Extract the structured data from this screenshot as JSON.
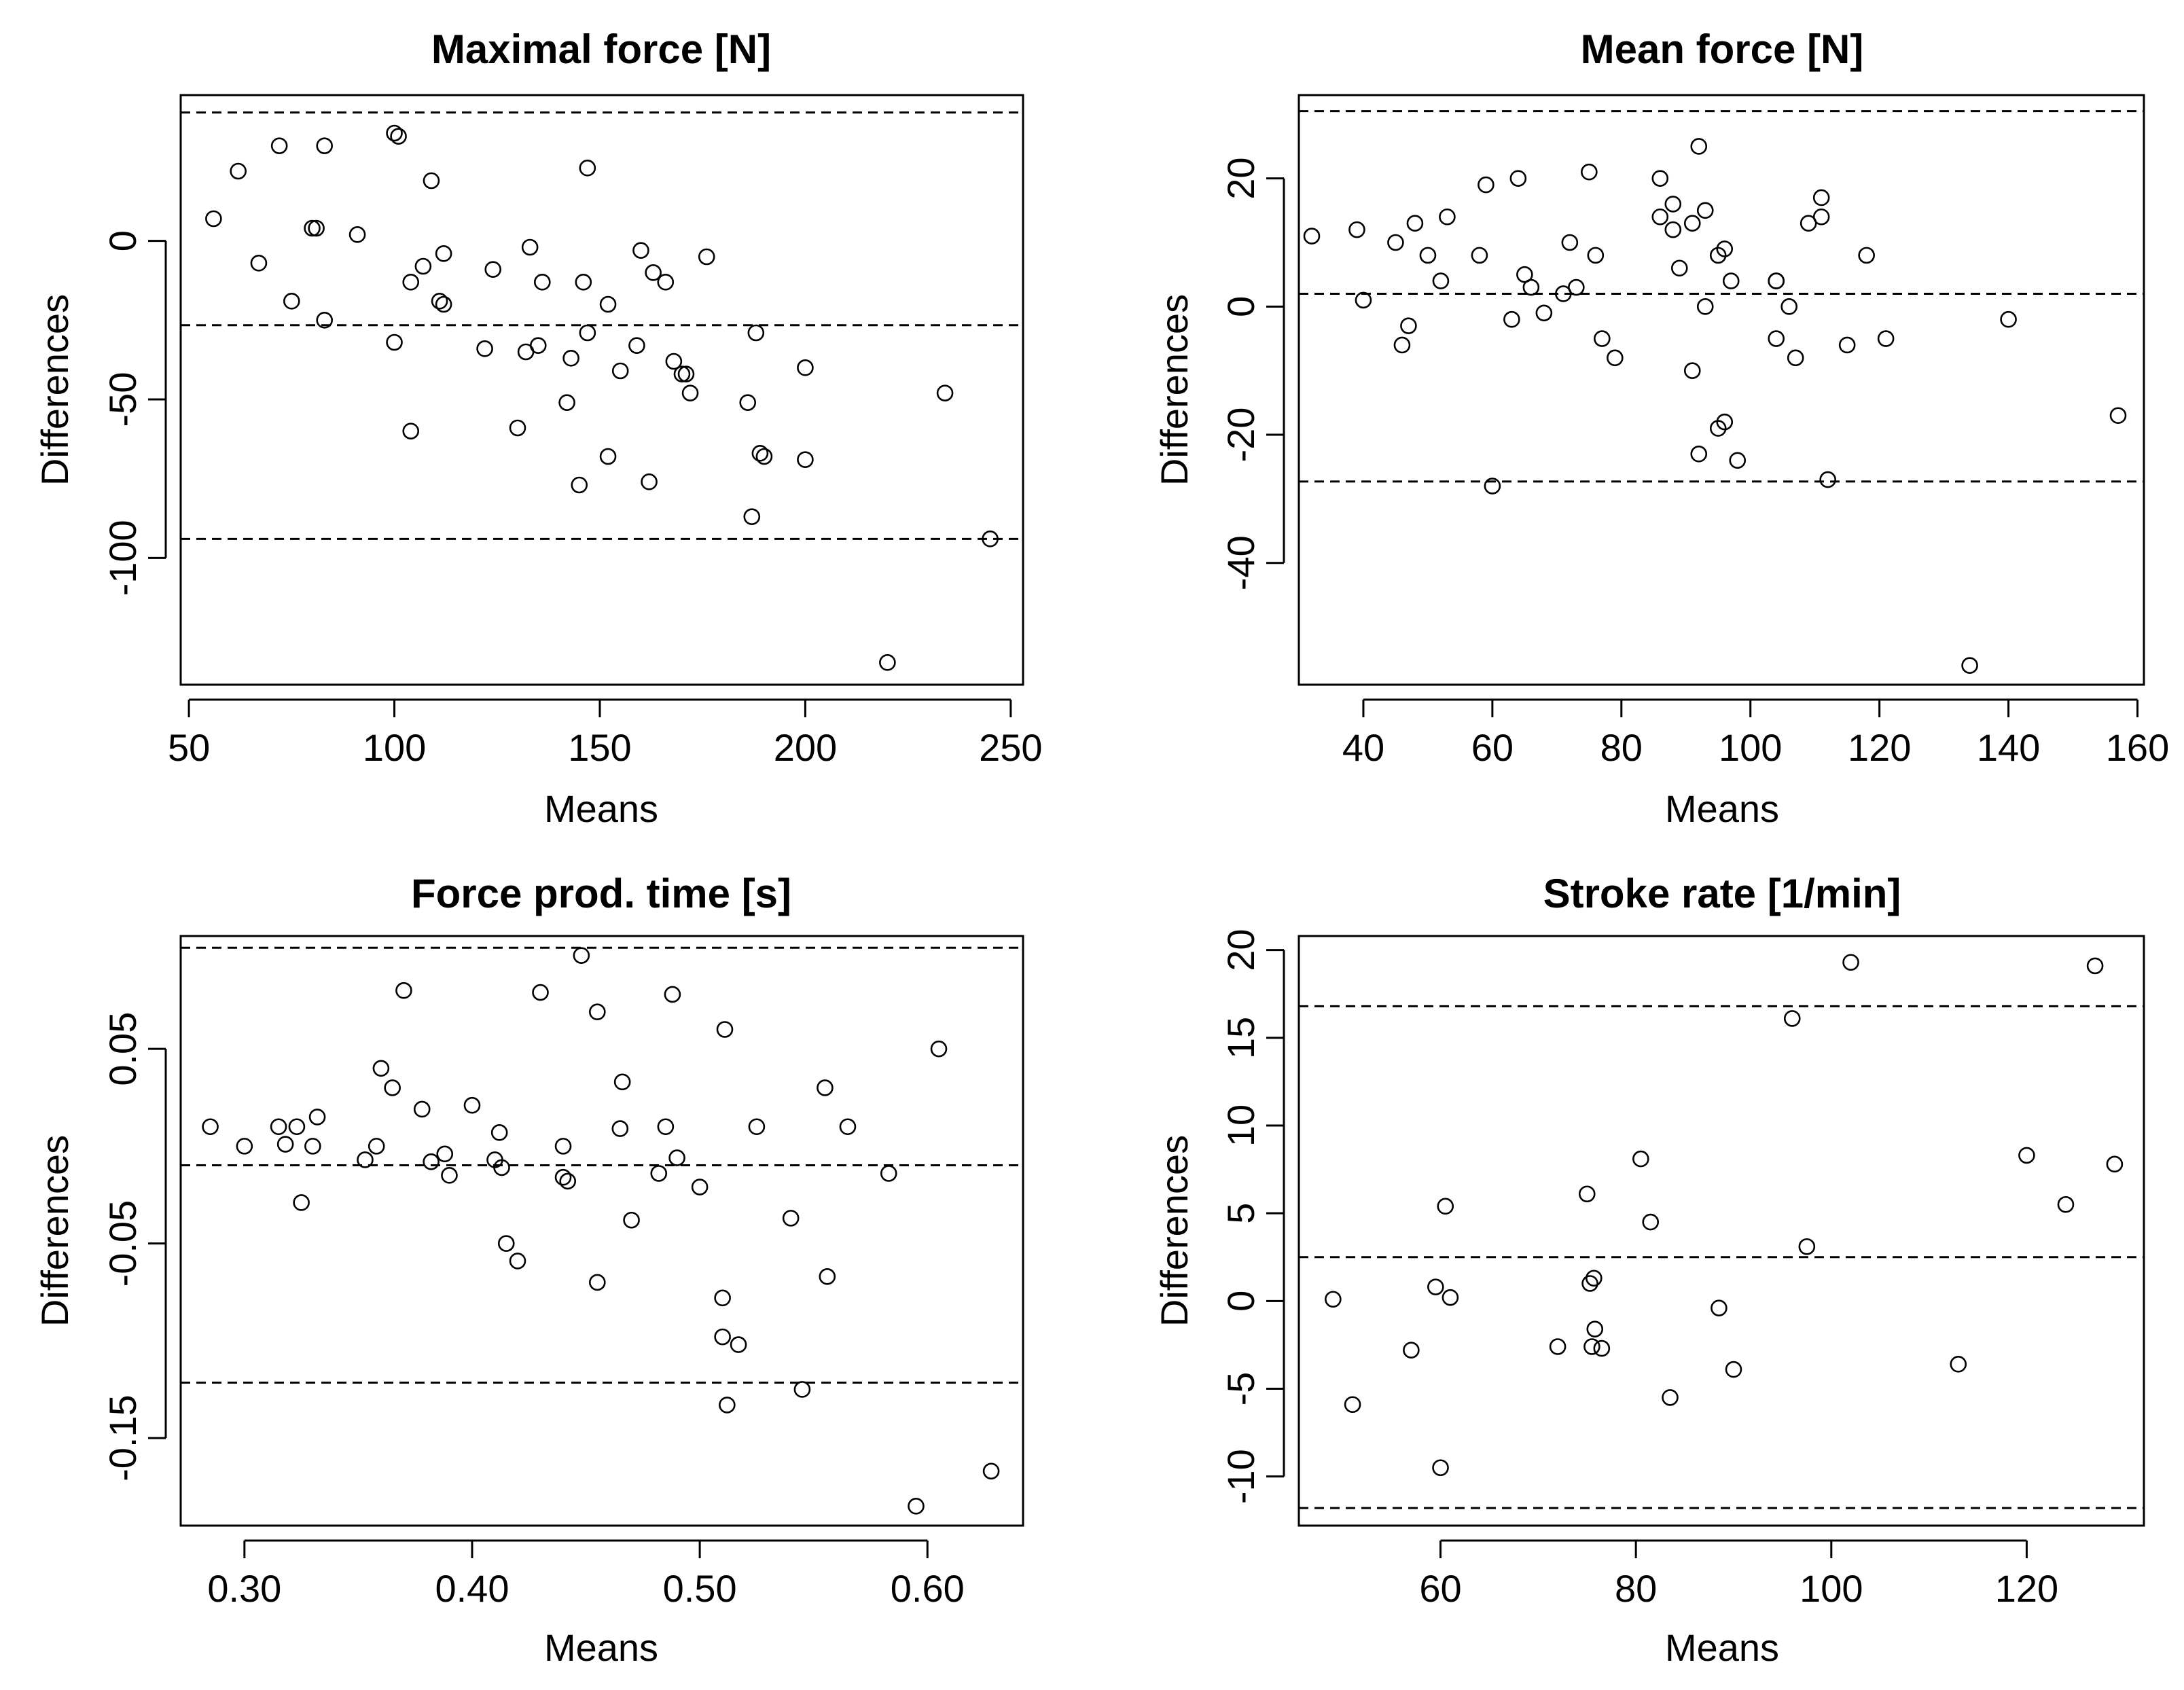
{
  "chart_data": [
    {
      "type": "scatter",
      "title": "Maximal force [N]",
      "xlabel": "Means",
      "ylabel": "Differences",
      "xlim": [
        48,
        253
      ],
      "ylim": [
        -140,
        46
      ],
      "xticks": [
        50,
        100,
        150,
        200,
        250
      ],
      "xtick_labels": [
        "50",
        "100",
        "150",
        "200",
        "250"
      ],
      "yticks": [
        -100,
        -50,
        0
      ],
      "ytick_labels": [
        "-100",
        "-50",
        "0"
      ],
      "hlines": [
        40.5,
        -26.6,
        -94.0
      ],
      "points": [
        [
          56,
          7
        ],
        [
          62,
          22
        ],
        [
          67,
          -7
        ],
        [
          72,
          30
        ],
        [
          75,
          -19
        ],
        [
          80,
          4
        ],
        [
          81,
          4
        ],
        [
          83,
          -25
        ],
        [
          83,
          30
        ],
        [
          91,
          2
        ],
        [
          100,
          34
        ],
        [
          101,
          33
        ],
        [
          100,
          -32
        ],
        [
          104,
          -13
        ],
        [
          104,
          -60
        ],
        [
          107,
          -8
        ],
        [
          109,
          19
        ],
        [
          111,
          -19
        ],
        [
          112,
          -20
        ],
        [
          112,
          -4
        ],
        [
          122,
          -34
        ],
        [
          124,
          -9
        ],
        [
          130,
          -59
        ],
        [
          132,
          -35
        ],
        [
          133,
          -2
        ],
        [
          135,
          -33
        ],
        [
          136,
          -13
        ],
        [
          142,
          -51
        ],
        [
          143,
          -37
        ],
        [
          145,
          -77
        ],
        [
          146,
          -13
        ],
        [
          147,
          -29
        ],
        [
          147,
          23
        ],
        [
          152,
          -20
        ],
        [
          152,
          -68
        ],
        [
          155,
          -41
        ],
        [
          159,
          -33
        ],
        [
          160,
          -3
        ],
        [
          162,
          -76
        ],
        [
          163,
          -10
        ],
        [
          166,
          -13
        ],
        [
          168,
          -38
        ],
        [
          170,
          -42
        ],
        [
          171,
          -42
        ],
        [
          172,
          -48
        ],
        [
          176,
          -5
        ],
        [
          186,
          -51
        ],
        [
          187,
          -87
        ],
        [
          188,
          -29
        ],
        [
          189,
          -67
        ],
        [
          190,
          -68
        ],
        [
          200,
          -40
        ],
        [
          200,
          -69
        ],
        [
          220,
          -133
        ],
        [
          234,
          -48
        ],
        [
          245,
          -94
        ]
      ]
    },
    {
      "type": "scatter",
      "title": "Mean force [N]",
      "xlabel": "Means",
      "ylabel": "Differences",
      "xlim": [
        30,
        161
      ],
      "ylim": [
        -59,
        33
      ],
      "xticks": [
        40,
        60,
        80,
        100,
        120,
        140,
        160
      ],
      "xtick_labels": [
        "40",
        "60",
        "80",
        "100",
        "120",
        "140",
        "160"
      ],
      "yticks": [
        -40,
        -20,
        0,
        20
      ],
      "ytick_labels": [
        "-40",
        "-20",
        "0",
        "20"
      ],
      "hlines": [
        30.5,
        2.0,
        -27.3
      ],
      "points": [
        [
          32,
          11
        ],
        [
          39,
          12
        ],
        [
          40,
          1
        ],
        [
          45,
          10
        ],
        [
          46,
          -6
        ],
        [
          47,
          -3
        ],
        [
          48,
          13
        ],
        [
          50,
          8
        ],
        [
          52,
          4
        ],
        [
          53,
          14
        ],
        [
          58,
          8
        ],
        [
          59,
          19
        ],
        [
          60,
          -28
        ],
        [
          63,
          -2
        ],
        [
          64,
          20
        ],
        [
          65,
          5
        ],
        [
          66,
          3
        ],
        [
          68,
          -1
        ],
        [
          71,
          2
        ],
        [
          72,
          10
        ],
        [
          73,
          3
        ],
        [
          75,
          21
        ],
        [
          76,
          8
        ],
        [
          77,
          -5
        ],
        [
          79,
          -8
        ],
        [
          86,
          20
        ],
        [
          86,
          14
        ],
        [
          88,
          12
        ],
        [
          88,
          16
        ],
        [
          89,
          6
        ],
        [
          91,
          -10
        ],
        [
          91,
          13
        ],
        [
          92,
          25
        ],
        [
          92,
          -23
        ],
        [
          93,
          15
        ],
        [
          93,
          0
        ],
        [
          95,
          8
        ],
        [
          95,
          -19
        ],
        [
          96,
          -18
        ],
        [
          96,
          9
        ],
        [
          97,
          4
        ],
        [
          98,
          -24
        ],
        [
          104,
          -5
        ],
        [
          104,
          4
        ],
        [
          104,
          4
        ],
        [
          106,
          0
        ],
        [
          107,
          -8
        ],
        [
          109,
          13
        ],
        [
          111,
          14
        ],
        [
          111,
          17
        ],
        [
          112,
          -27
        ],
        [
          115,
          -6
        ],
        [
          118,
          8
        ],
        [
          121,
          -5
        ],
        [
          134,
          -56
        ],
        [
          140,
          -2
        ],
        [
          157,
          -17
        ]
      ]
    },
    {
      "type": "scatter",
      "title": "Force prod. time [s]",
      "xlabel": "Means",
      "ylabel": "Differences",
      "xlim": [
        0.272,
        0.642
      ],
      "ylim": [
        -0.195,
        0.108
      ],
      "xticks": [
        0.3,
        0.4,
        0.5,
        0.6
      ],
      "xtick_labels": [
        "0.30",
        "0.40",
        "0.50",
        "0.60"
      ],
      "yticks": [
        -0.15,
        -0.05,
        0.05
      ],
      "ytick_labels": [
        "-0.15",
        "-0.05",
        "0.05"
      ],
      "hlines": [
        0.102,
        -0.0098,
        -0.1215
      ],
      "points": [
        [
          0.285,
          0.01
        ],
        [
          0.3,
          0.0
        ],
        [
          0.315,
          0.01
        ],
        [
          0.318,
          0.001
        ],
        [
          0.323,
          0.01
        ],
        [
          0.325,
          -0.029
        ],
        [
          0.33,
          0.0
        ],
        [
          0.332,
          0.015
        ],
        [
          0.353,
          -0.007
        ],
        [
          0.358,
          0.0
        ],
        [
          0.36,
          0.04
        ],
        [
          0.365,
          0.03
        ],
        [
          0.37,
          0.08
        ],
        [
          0.378,
          0.019
        ],
        [
          0.382,
          -0.008
        ],
        [
          0.388,
          -0.004
        ],
        [
          0.39,
          -0.015
        ],
        [
          0.4,
          0.021
        ],
        [
          0.41,
          -0.007
        ],
        [
          0.412,
          0.007
        ],
        [
          0.413,
          -0.011
        ],
        [
          0.415,
          -0.05
        ],
        [
          0.42,
          -0.059
        ],
        [
          0.43,
          0.079
        ],
        [
          0.44,
          0.0
        ],
        [
          0.44,
          -0.016
        ],
        [
          0.442,
          -0.018
        ],
        [
          0.448,
          0.098
        ],
        [
          0.455,
          -0.07
        ],
        [
          0.455,
          0.069
        ],
        [
          0.465,
          0.009
        ],
        [
          0.466,
          0.033
        ],
        [
          0.47,
          -0.038
        ],
        [
          0.482,
          -0.014
        ],
        [
          0.485,
          0.01
        ],
        [
          0.488,
          0.078
        ],
        [
          0.49,
          -0.006
        ],
        [
          0.5,
          -0.021
        ],
        [
          0.51,
          -0.078
        ],
        [
          0.51,
          -0.098
        ],
        [
          0.511,
          0.06
        ],
        [
          0.512,
          -0.133
        ],
        [
          0.517,
          -0.102
        ],
        [
          0.525,
          0.01
        ],
        [
          0.54,
          -0.037
        ],
        [
          0.545,
          -0.125
        ],
        [
          0.555,
          0.03
        ],
        [
          0.556,
          -0.067
        ],
        [
          0.565,
          0.01
        ],
        [
          0.583,
          -0.014
        ],
        [
          0.595,
          -0.185
        ],
        [
          0.605,
          0.05
        ],
        [
          0.628,
          -0.167
        ]
      ]
    },
    {
      "type": "scatter",
      "title": "Stroke rate [1/min]",
      "xlabel": "Means",
      "ylabel": "Differences",
      "xlim": [
        45.5,
        132
      ],
      "ylim": [
        -12.8,
        20.8
      ],
      "xticks": [
        60,
        80,
        100,
        120
      ],
      "xtick_labels": [
        "60",
        "80",
        "100",
        "120"
      ],
      "yticks": [
        -10,
        -5,
        0,
        5,
        10,
        15,
        20
      ],
      "ytick_labels": [
        "-10",
        "-5",
        "0",
        "5",
        "10",
        "15",
        "20"
      ],
      "hlines": [
        16.8,
        2.5,
        -11.8
      ],
      "points": [
        [
          49,
          0.1
        ],
        [
          51,
          -5.9
        ],
        [
          57,
          -2.8
        ],
        [
          59.5,
          0.8
        ],
        [
          60,
          -9.5
        ],
        [
          60.5,
          5.4
        ],
        [
          61,
          0.2
        ],
        [
          72,
          -2.6
        ],
        [
          75,
          6.1
        ],
        [
          75.3,
          1.0
        ],
        [
          75.5,
          -2.6
        ],
        [
          75.7,
          1.3
        ],
        [
          75.8,
          -1.6
        ],
        [
          76.5,
          -2.7
        ],
        [
          80.5,
          8.1
        ],
        [
          81.5,
          4.5
        ],
        [
          83.5,
          -5.5
        ],
        [
          88.5,
          -0.4
        ],
        [
          90,
          -3.9
        ],
        [
          96,
          16.1
        ],
        [
          97.5,
          3.1
        ],
        [
          102,
          19.3
        ],
        [
          113,
          -3.6
        ],
        [
          120,
          8.3
        ],
        [
          124,
          5.5
        ],
        [
          127,
          19.1
        ],
        [
          129,
          7.8
        ]
      ]
    }
  ]
}
